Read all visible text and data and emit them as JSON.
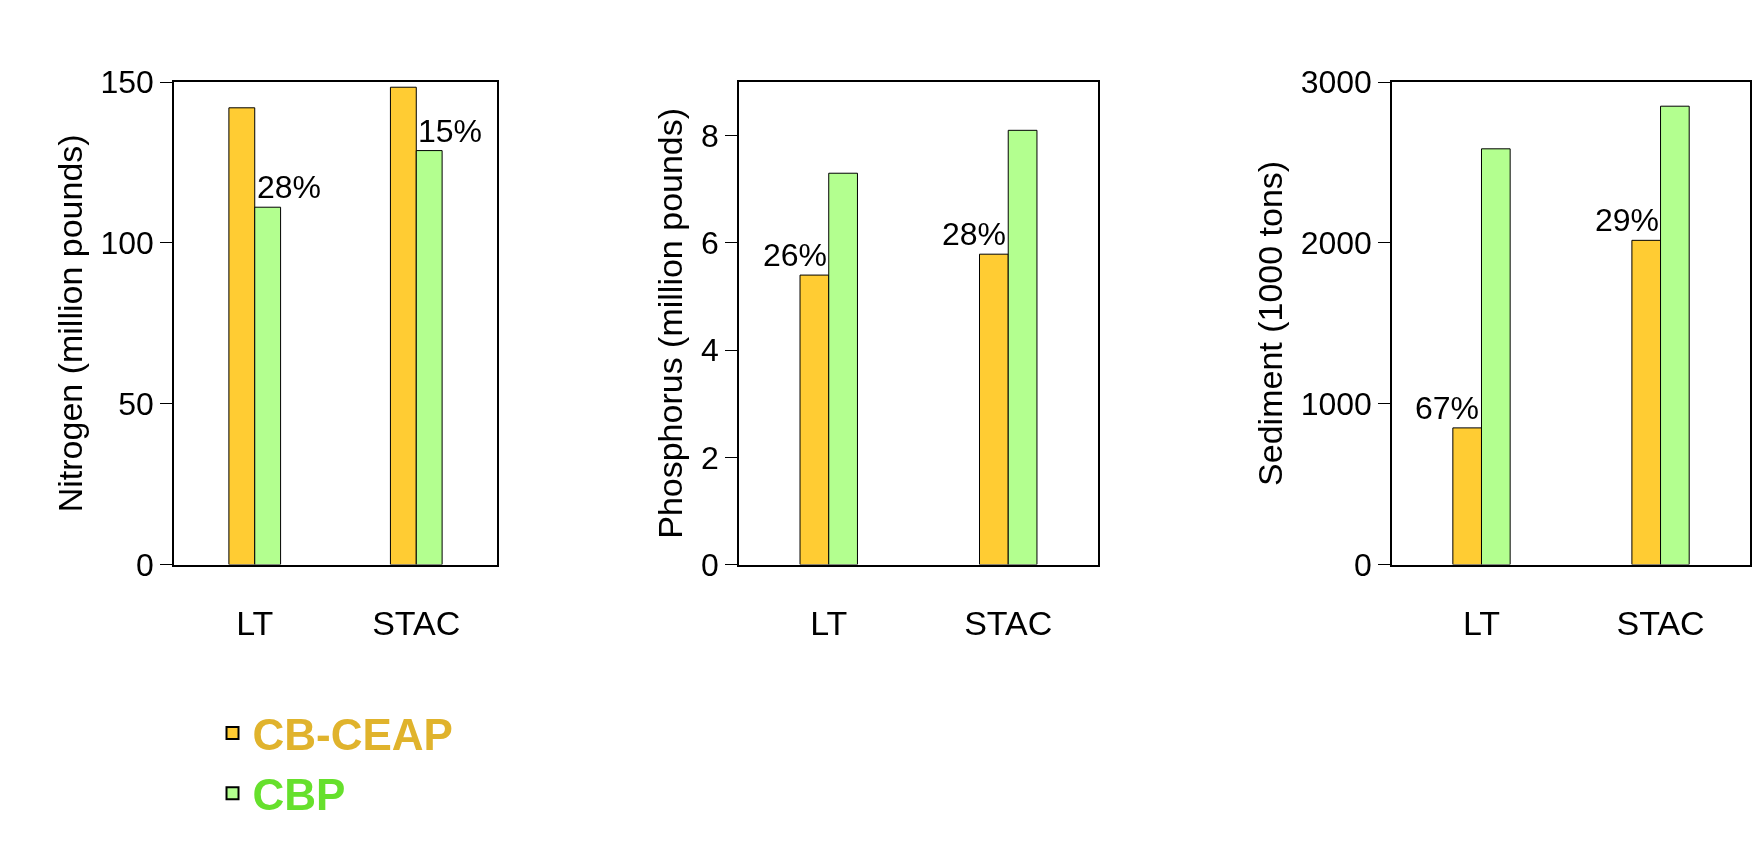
{
  "chart_data": [
    {
      "type": "bar",
      "categories": [
        "LT",
        "STAC"
      ],
      "ylabel": "Nitrogen (million pounds)",
      "ylim": [
        0,
        150
      ],
      "yticks": [
        0,
        50,
        100,
        150
      ],
      "legend": "bottom",
      "series": [
        {
          "name": "CB-CEAP",
          "color": "#ffcc33",
          "values": [
            142.0,
            148.4
          ]
        },
        {
          "name": "CBP",
          "color": "#b3ff8f",
          "values": [
            111.1,
            128.7
          ]
        }
      ],
      "annotations": [
        {
          "text": "28%",
          "x": "LT",
          "y": 111.1
        },
        {
          "text": "15%",
          "x": "STAC",
          "y": 128.7
        }
      ]
    },
    {
      "type": "bar",
      "categories": [
        "LT",
        "STAC"
      ],
      "ylabel": "Phosphorus (million pounds)",
      "ylim": [
        0,
        9
      ],
      "yticks": [
        0,
        2,
        4,
        6,
        8
      ],
      "series": [
        {
          "color": "#ffcc33",
          "values": [
            5.4,
            5.79
          ]
        },
        {
          "color": "#b3ff8f",
          "values": [
            7.3,
            8.1
          ]
        }
      ],
      "annotations": [
        {
          "text": "26%",
          "x": "LT",
          "y": 5.4
        },
        {
          "text": "28%",
          "x": "STAC",
          "y": 5.79
        }
      ]
    },
    {
      "type": "bar",
      "categories": [
        "LT",
        "STAC"
      ],
      "ylabel": "Sediment (1000 tons)",
      "ylim": [
        0,
        3000
      ],
      "yticks": [
        0,
        1000,
        2000,
        3000
      ],
      "series": [
        {
          "color": "#ffcc33",
          "values": [
            850,
            2016
          ]
        },
        {
          "color": "#b3ff8f",
          "values": [
            2585,
            2850
          ]
        }
      ],
      "annotations": [
        {
          "text": "67%",
          "x": "LT",
          "y": 850
        },
        {
          "text": "29%",
          "x": "STAC",
          "y": 2016
        }
      ]
    }
  ]
}
